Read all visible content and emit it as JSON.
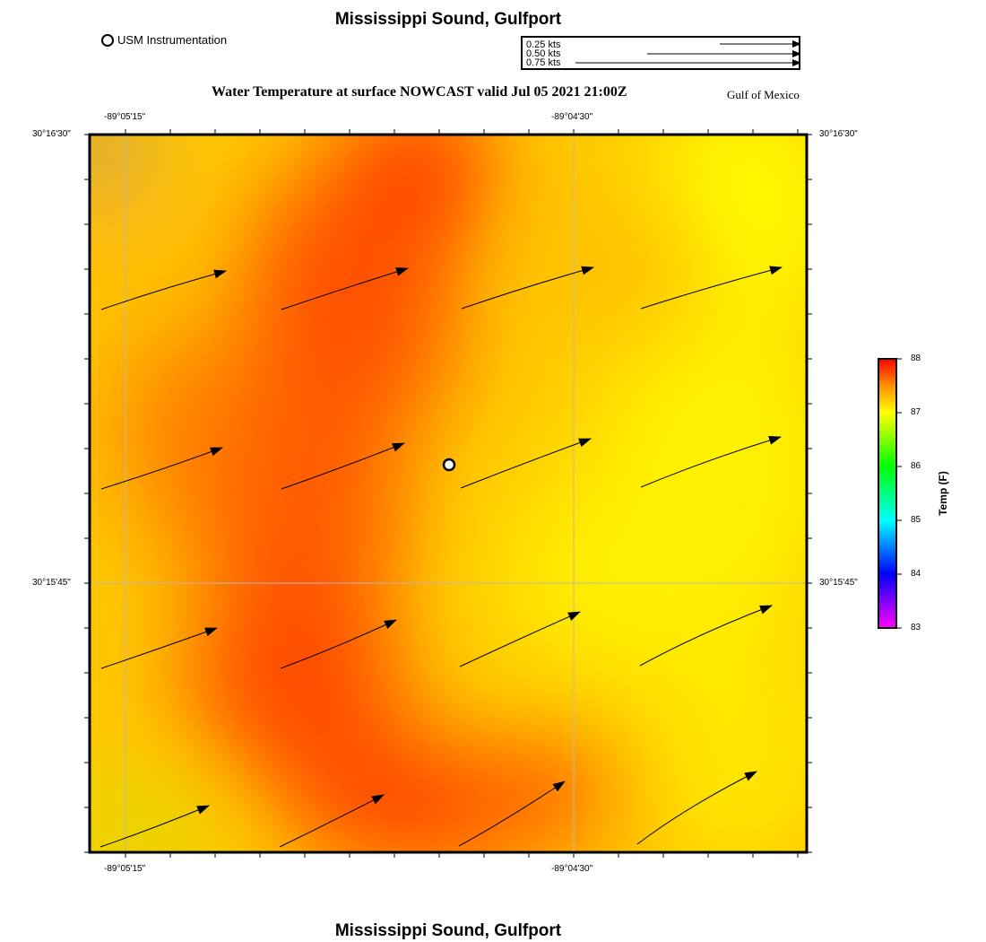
{
  "header": {
    "title": "Mississippi Sound, Gulfport",
    "legend_marker_label": "USM Instrumentation",
    "subtitle": "Water Temperature at surface NOWCAST  valid Jul 05 2021 21:00Z",
    "region_label": "Gulf of Mexico"
  },
  "footer": {
    "title": "Mississippi Sound, Gulfport"
  },
  "vector_scale": {
    "entries": [
      {
        "label": "0.25 kts",
        "speed_kts": 0.25
      },
      {
        "label": "0.50 kts",
        "speed_kts": 0.5
      },
      {
        "label": "0.75 kts",
        "speed_kts": 0.75
      }
    ]
  },
  "map": {
    "lon_labels": [
      "-89°05'15\"",
      "-89°04'30\""
    ],
    "lat_labels": [
      "30°16'30\"",
      "30°15'45\""
    ],
    "station": {
      "name": "USM Instrumentation"
    }
  },
  "colorbar": {
    "title": "Temp (F)",
    "ticks": [
      "88",
      "87",
      "86",
      "85",
      "84",
      "83"
    ],
    "min": 83,
    "max": 88,
    "colors": [
      "#ff00ff",
      "#0000ff",
      "#00ffff",
      "#00ff00",
      "#ffff00",
      "#ff8c00",
      "#ff0000"
    ]
  }
}
